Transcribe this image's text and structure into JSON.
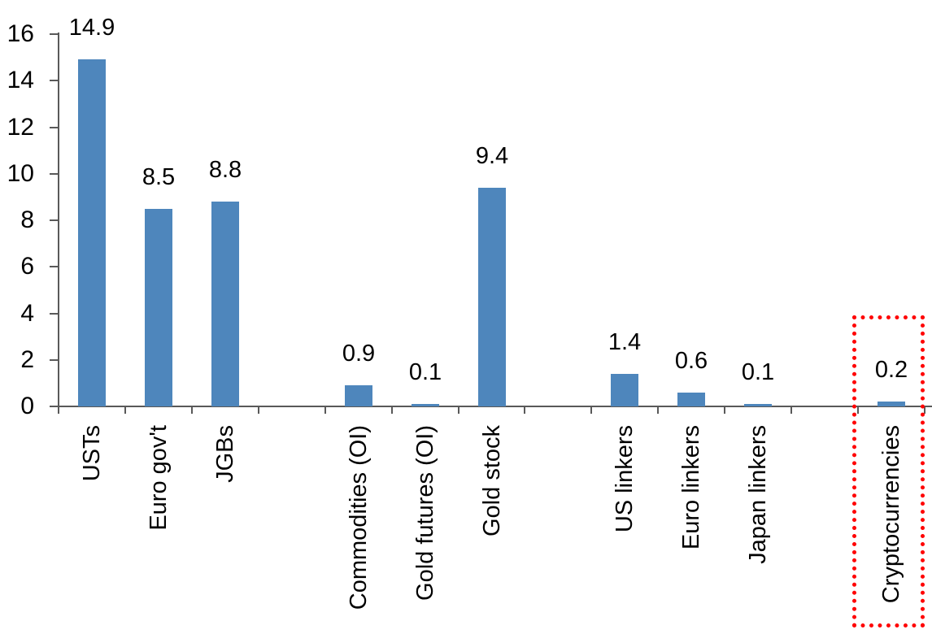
{
  "chart_data": {
    "type": "bar",
    "title": "",
    "categories": [
      "USTs",
      "Euro gov't",
      "JGBs",
      "Commodities (OI)",
      "Gold futures (OI)",
      "Gold stock",
      "US linkers",
      "Euro linkers",
      "Japan linkers",
      "Cryptocurrencies"
    ],
    "values": [
      14.9,
      8.5,
      8.8,
      0.9,
      0.1,
      9.4,
      1.4,
      0.6,
      0.1,
      0.2
    ],
    "value_labels": [
      "14.9",
      "8.5",
      "8.8",
      "0.9",
      "0.1",
      "9.4",
      "1.4",
      "0.6",
      "0.1",
      "0.2"
    ],
    "y_ticks": [
      "0",
      "2",
      "4",
      "6",
      "8",
      "10",
      "12",
      "14",
      "16"
    ],
    "y_tick_values": [
      0,
      2,
      4,
      6,
      8,
      10,
      12,
      14,
      16
    ],
    "ylim": [
      0,
      16
    ],
    "xlabel": "",
    "ylabel": "",
    "grid": "off",
    "legend": "none",
    "bar_color": "#4E86BC",
    "axis_color": "#595959",
    "text_color": "#000000",
    "highlight": {
      "category": "Cryptocurrencies",
      "box_color": "#FF0000",
      "box_style": "dotted"
    },
    "slot_indices": [
      0,
      1,
      2,
      4,
      5,
      6,
      8,
      9,
      10,
      12
    ],
    "total_slots": 13
  }
}
